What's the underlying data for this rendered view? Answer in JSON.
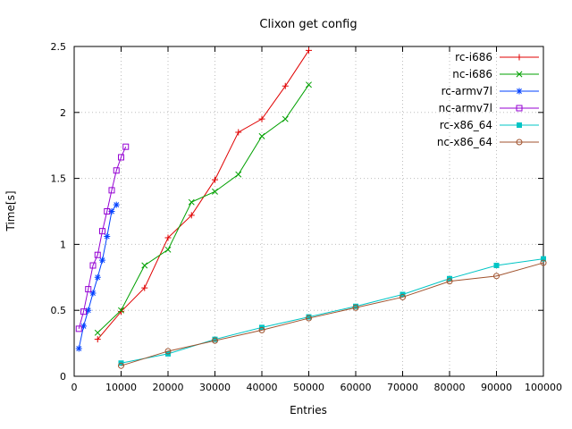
{
  "chart_data": {
    "type": "line",
    "title": "Clixon get config",
    "xlabel": "Entries",
    "ylabel": "Time[s]",
    "xlim": [
      0,
      100000
    ],
    "ylim": [
      0,
      2.5
    ],
    "grid": true,
    "legend_position": "top-right-inside",
    "x_ticks": [
      0,
      10000,
      20000,
      30000,
      40000,
      50000,
      60000,
      70000,
      80000,
      90000,
      100000
    ],
    "x_tick_labels": [
      "0",
      "10000",
      "20000",
      "30000",
      "40000",
      "50000",
      "60000",
      "70000",
      "80000",
      "90000",
      "100000"
    ],
    "y_ticks": [
      0,
      0.5,
      1,
      1.5,
      2,
      2.5
    ],
    "y_tick_labels": [
      "0",
      "0.5",
      "1",
      "1.5",
      "2",
      "2.5"
    ],
    "series": [
      {
        "name": "rc-i686",
        "color": "#e00000",
        "marker": "plus",
        "points": [
          [
            5000,
            0.28
          ],
          [
            10000,
            0.49
          ],
          [
            15000,
            0.67
          ],
          [
            20000,
            1.05
          ],
          [
            25000,
            1.22
          ],
          [
            30000,
            1.49
          ],
          [
            35000,
            1.85
          ],
          [
            40000,
            1.95
          ],
          [
            45000,
            2.2
          ],
          [
            50000,
            2.47
          ]
        ]
      },
      {
        "name": "nc-i686",
        "color": "#00a000",
        "marker": "cross",
        "points": [
          [
            5000,
            0.33
          ],
          [
            10000,
            0.5
          ],
          [
            15000,
            0.84
          ],
          [
            20000,
            0.96
          ],
          [
            25000,
            1.32
          ],
          [
            30000,
            1.4
          ],
          [
            35000,
            1.53
          ],
          [
            40000,
            1.82
          ],
          [
            45000,
            1.95
          ],
          [
            50000,
            2.21
          ]
        ]
      },
      {
        "name": "rc-armv7l",
        "color": "#0040ff",
        "marker": "asterisk",
        "points": [
          [
            1000,
            0.21
          ],
          [
            2000,
            0.38
          ],
          [
            3000,
            0.5
          ],
          [
            4000,
            0.63
          ],
          [
            5000,
            0.75
          ],
          [
            6000,
            0.88
          ],
          [
            7000,
            1.06
          ],
          [
            8000,
            1.25
          ],
          [
            9000,
            1.3
          ]
        ]
      },
      {
        "name": "nc-armv7l",
        "color": "#9400d3",
        "marker": "square-open",
        "points": [
          [
            1000,
            0.36
          ],
          [
            2000,
            0.49
          ],
          [
            3000,
            0.66
          ],
          [
            4000,
            0.84
          ],
          [
            5000,
            0.92
          ],
          [
            6000,
            1.1
          ],
          [
            7000,
            1.25
          ],
          [
            8000,
            1.41
          ],
          [
            9000,
            1.56
          ],
          [
            10000,
            1.66
          ],
          [
            11000,
            1.74
          ]
        ]
      },
      {
        "name": "rc-x86_64",
        "color": "#00c5c5",
        "marker": "square-filled",
        "points": [
          [
            10000,
            0.1
          ],
          [
            20000,
            0.17
          ],
          [
            30000,
            0.28
          ],
          [
            40000,
            0.37
          ],
          [
            50000,
            0.45
          ],
          [
            60000,
            0.53
          ],
          [
            70000,
            0.62
          ],
          [
            80000,
            0.74
          ],
          [
            90000,
            0.84
          ],
          [
            100000,
            0.89
          ]
        ]
      },
      {
        "name": "nc-x86_64",
        "color": "#a0522d",
        "marker": "circle-open",
        "points": [
          [
            10000,
            0.08
          ],
          [
            20000,
            0.19
          ],
          [
            30000,
            0.27
          ],
          [
            40000,
            0.35
          ],
          [
            50000,
            0.44
          ],
          [
            60000,
            0.52
          ],
          [
            70000,
            0.6
          ],
          [
            80000,
            0.72
          ],
          [
            90000,
            0.76
          ],
          [
            100000,
            0.86
          ]
        ]
      }
    ]
  }
}
